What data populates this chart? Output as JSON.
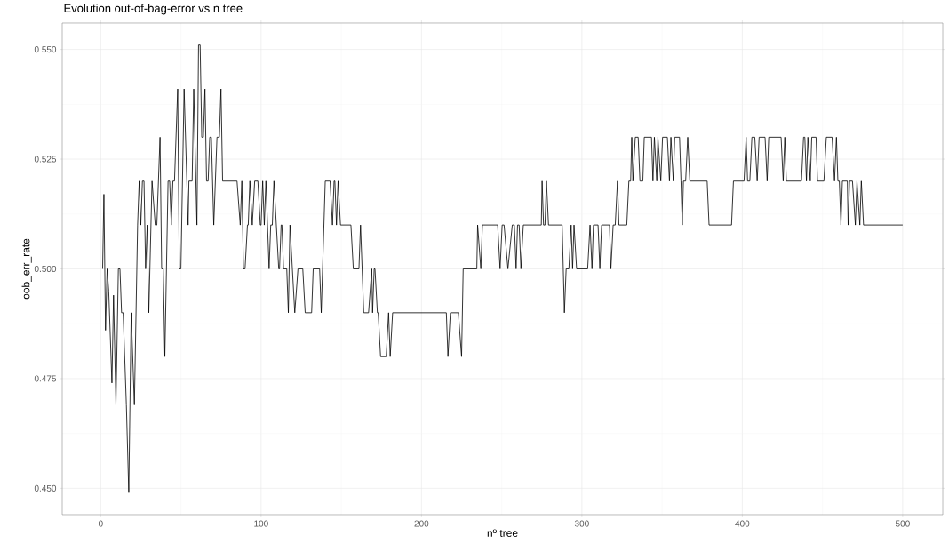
{
  "chart_data": {
    "type": "line",
    "title": "Evolution out-of-bag-error vs n tree",
    "xlabel": "nº tree",
    "ylabel": "oob_err_rate",
    "x": [
      1.2,
      2,
      3,
      4,
      5,
      7,
      8,
      9.5,
      11,
      12,
      13,
      14,
      16,
      17.5,
      19,
      21,
      23,
      24,
      25,
      26,
      27,
      28,
      29,
      30,
      32,
      34,
      35,
      37,
      38,
      39,
      40,
      42,
      43,
      44,
      45,
      46,
      48,
      49,
      50,
      52,
      54.5,
      55,
      57,
      58,
      60,
      61,
      62,
      63,
      64,
      65,
      66,
      67,
      68,
      69,
      70.5,
      72.5,
      74,
      75,
      76,
      85,
      87,
      88,
      89,
      90,
      91.5,
      92,
      93,
      94.5,
      96,
      98,
      99.5,
      100,
      101,
      102,
      103,
      105,
      106,
      107,
      108,
      109.5,
      111,
      111.5,
      112.5,
      113,
      114,
      116,
      117,
      118,
      121,
      123,
      126,
      127.5,
      131.5,
      132.5,
      136.5,
      137.5,
      140,
      143,
      144.5,
      145.5,
      146,
      147,
      148,
      149.5,
      156,
      157.5,
      161,
      162,
      164,
      167,
      169,
      169.5,
      170.5,
      171,
      172.5,
      173,
      174.5,
      178,
      179.5,
      180.5,
      182,
      215.5,
      216.5,
      218,
      223,
      225,
      226,
      234.5,
      235,
      237,
      238,
      247.5,
      249,
      250.3,
      251.5,
      253.9,
      256.6,
      257.9,
      259,
      259.9,
      260.9,
      262,
      263.5,
      274.7,
      275.2,
      276.1,
      277,
      277.9,
      279.2,
      287.7,
      289.1,
      290.2,
      291.9,
      293.3,
      294.2,
      295.1,
      296.7,
      303.6,
      305.1,
      306.3,
      307.2,
      310.1,
      311.2,
      312.3,
      317.2,
      318.1,
      319.5,
      320.8,
      322.2,
      323.1,
      328,
      329.3,
      330.4,
      331.1,
      331.8,
      333.3,
      335.1,
      336.2,
      338,
      338.9,
      343.4,
      344.3,
      345.2,
      346.7,
      347.4,
      349.2,
      350.3,
      353.3,
      354.6,
      355.5,
      357,
      357.9,
      360.9,
      361.8,
      362.6,
      363.3,
      364.7,
      366,
      367.3,
      378.1,
      379.3,
      393.3,
      394.5,
      401.1,
      402.4,
      403.3,
      404.7,
      406,
      407.8,
      409.3,
      410.5,
      414.2,
      415.5,
      416.5,
      424.2,
      425.5,
      426.5,
      427.5,
      436.9,
      438.2,
      439,
      440,
      440.9,
      442.4,
      443.3,
      446,
      446.9,
      450.9,
      452.4,
      456,
      457.5,
      458.7,
      459.6,
      460.5,
      461.5,
      462.4,
      465.5,
      466,
      466.9,
      468.7,
      470.5,
      471.5,
      473.3,
      474.2,
      475.6,
      500
    ],
    "values": [
      0.5,
      0.517,
      0.486,
      0.5,
      0.495,
      0.474,
      0.494,
      0.469,
      0.5,
      0.5,
      0.49,
      0.49,
      0.469,
      0.449,
      0.49,
      0.469,
      0.51,
      0.52,
      0.51,
      0.52,
      0.52,
      0.5,
      0.51,
      0.49,
      0.52,
      0.51,
      0.51,
      0.53,
      0.5,
      0.5,
      0.48,
      0.52,
      0.52,
      0.51,
      0.52,
      0.52,
      0.541,
      0.5,
      0.5,
      0.541,
      0.51,
      0.52,
      0.52,
      0.541,
      0.51,
      0.551,
      0.551,
      0.53,
      0.53,
      0.541,
      0.52,
      0.52,
      0.53,
      0.53,
      0.51,
      0.53,
      0.53,
      0.541,
      0.52,
      0.52,
      0.51,
      0.52,
      0.5,
      0.5,
      0.51,
      0.51,
      0.52,
      0.51,
      0.52,
      0.52,
      0.51,
      0.51,
      0.52,
      0.51,
      0.52,
      0.5,
      0.51,
      0.51,
      0.52,
      0.51,
      0.5,
      0.5,
      0.51,
      0.51,
      0.5,
      0.5,
      0.49,
      0.51,
      0.49,
      0.5,
      0.5,
      0.49,
      0.49,
      0.5,
      0.5,
      0.49,
      0.52,
      0.52,
      0.51,
      0.52,
      0.52,
      0.51,
      0.52,
      0.51,
      0.51,
      0.5,
      0.5,
      0.51,
      0.49,
      0.49,
      0.5,
      0.49,
      0.5,
      0.5,
      0.49,
      0.49,
      0.48,
      0.48,
      0.49,
      0.48,
      0.49,
      0.49,
      0.48,
      0.49,
      0.49,
      0.48,
      0.5,
      0.5,
      0.51,
      0.5,
      0.51,
      0.51,
      0.5,
      0.51,
      0.51,
      0.5,
      0.51,
      0.51,
      0.5,
      0.51,
      0.51,
      0.5,
      0.51,
      0.51,
      0.52,
      0.51,
      0.51,
      0.52,
      0.51,
      0.51,
      0.49,
      0.5,
      0.5,
      0.51,
      0.5,
      0.51,
      0.5,
      0.5,
      0.51,
      0.5,
      0.51,
      0.51,
      0.5,
      0.51,
      0.51,
      0.5,
      0.51,
      0.51,
      0.52,
      0.51,
      0.51,
      0.52,
      0.52,
      0.53,
      0.52,
      0.53,
      0.53,
      0.52,
      0.52,
      0.53,
      0.53,
      0.52,
      0.53,
      0.52,
      0.53,
      0.52,
      0.53,
      0.53,
      0.52,
      0.53,
      0.52,
      0.53,
      0.53,
      0.52,
      0.51,
      0.52,
      0.52,
      0.53,
      0.52,
      0.52,
      0.51,
      0.51,
      0.52,
      0.52,
      0.53,
      0.52,
      0.52,
      0.53,
      0.53,
      0.52,
      0.53,
      0.53,
      0.52,
      0.53,
      0.53,
      0.52,
      0.53,
      0.52,
      0.52,
      0.53,
      0.53,
      0.52,
      0.53,
      0.52,
      0.53,
      0.53,
      0.52,
      0.52,
      0.53,
      0.53,
      0.52,
      0.53,
      0.52,
      0.52,
      0.51,
      0.52,
      0.52,
      0.51,
      0.52,
      0.52,
      0.51,
      0.52,
      0.51,
      0.52,
      0.51,
      0.51
    ],
    "color": "#000000",
    "xlim": [
      -24,
      525
    ],
    "ylim": [
      0.444,
      0.556
    ],
    "xticks": [
      0,
      100,
      200,
      300,
      400,
      500
    ],
    "yticks": [
      {
        "value": 0.45,
        "label": "0.450"
      },
      {
        "value": 0.475,
        "label": "0.475"
      },
      {
        "value": 0.5,
        "label": "0.500"
      },
      {
        "value": 0.525,
        "label": "0.525"
      },
      {
        "value": 0.55,
        "label": "0.550"
      }
    ],
    "grid": true,
    "line_style": "solid",
    "marker": "none"
  }
}
